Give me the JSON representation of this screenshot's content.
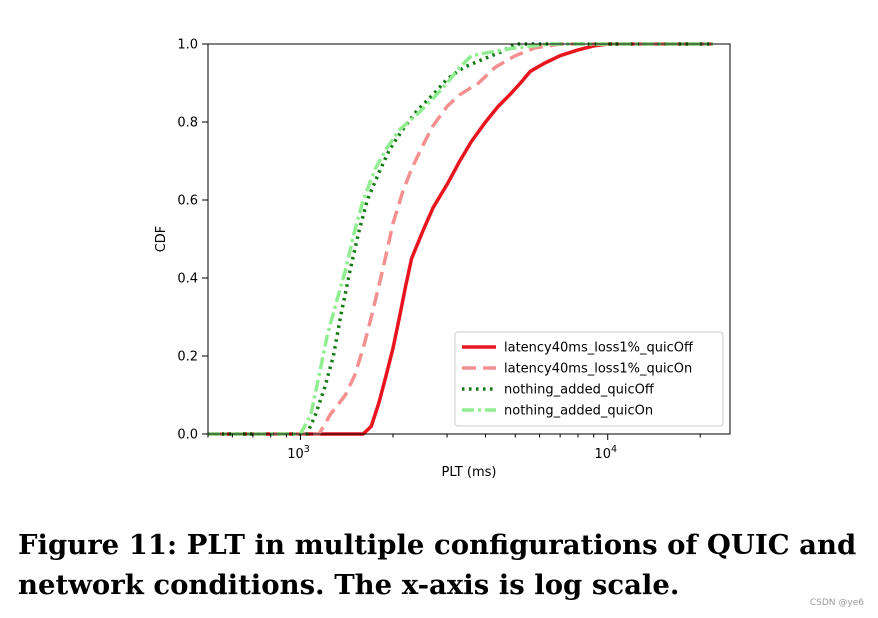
{
  "figure": {
    "caption": "Figure 11: PLT in multiple configurations of QUIC and network conditions. The x-axis is log scale.",
    "watermark": "CSDN @ye6"
  },
  "chart_data": {
    "type": "line",
    "xlabel": "PLT (ms)",
    "ylabel": "CDF",
    "xscale": "log",
    "xlim": [
      500,
      25000
    ],
    "ylim": [
      0,
      1
    ],
    "x_ticks": [
      {
        "value": 1000,
        "base": "10",
        "exp": "3"
      },
      {
        "value": 10000,
        "base": "10",
        "exp": "4"
      }
    ],
    "y_ticks": [
      "0.0",
      "0.2",
      "0.4",
      "0.6",
      "0.8",
      "1.0"
    ],
    "grid": false,
    "legend_position": "lower-right",
    "series": [
      {
        "name": "latency40ms_loss1%_quicOff",
        "color": "#e8141e",
        "style": "solid",
        "points": [
          [
            500,
            0
          ],
          [
            1600,
            0
          ],
          [
            1700,
            0.02
          ],
          [
            1800,
            0.08
          ],
          [
            1900,
            0.15
          ],
          [
            2000,
            0.22
          ],
          [
            2100,
            0.3
          ],
          [
            2200,
            0.38
          ],
          [
            2300,
            0.45
          ],
          [
            2500,
            0.52
          ],
          [
            2700,
            0.58
          ],
          [
            3000,
            0.64
          ],
          [
            3300,
            0.7
          ],
          [
            3600,
            0.75
          ],
          [
            4000,
            0.8
          ],
          [
            4400,
            0.84
          ],
          [
            4800,
            0.87
          ],
          [
            5200,
            0.9
          ],
          [
            5600,
            0.93
          ],
          [
            6200,
            0.95
          ],
          [
            7000,
            0.97
          ],
          [
            8000,
            0.985
          ],
          [
            9000,
            0.995
          ],
          [
            10000,
            1.0
          ],
          [
            22000,
            1.0
          ]
        ]
      },
      {
        "name": "latency40ms_loss1%_quicOn",
        "color": "#f4908f",
        "style": "dash",
        "points": [
          [
            500,
            0
          ],
          [
            1150,
            0
          ],
          [
            1250,
            0.05
          ],
          [
            1400,
            0.1
          ],
          [
            1500,
            0.15
          ],
          [
            1600,
            0.22
          ],
          [
            1700,
            0.3
          ],
          [
            1800,
            0.38
          ],
          [
            1900,
            0.46
          ],
          [
            2000,
            0.54
          ],
          [
            2150,
            0.62
          ],
          [
            2300,
            0.68
          ],
          [
            2500,
            0.74
          ],
          [
            2700,
            0.79
          ],
          [
            3000,
            0.84
          ],
          [
            3300,
            0.87
          ],
          [
            3800,
            0.9
          ],
          [
            4300,
            0.94
          ],
          [
            5000,
            0.97
          ],
          [
            5800,
            0.99
          ],
          [
            7000,
            1.0
          ],
          [
            22000,
            1.0
          ]
        ]
      },
      {
        "name": "nothing_added_quicOff",
        "color": "#127a12",
        "style": "dot",
        "points": [
          [
            500,
            0
          ],
          [
            1050,
            0
          ],
          [
            1120,
            0.05
          ],
          [
            1200,
            0.12
          ],
          [
            1280,
            0.2
          ],
          [
            1350,
            0.3
          ],
          [
            1450,
            0.42
          ],
          [
            1550,
            0.52
          ],
          [
            1650,
            0.6
          ],
          [
            1800,
            0.67
          ],
          [
            1950,
            0.73
          ],
          [
            2150,
            0.78
          ],
          [
            2400,
            0.83
          ],
          [
            2700,
            0.87
          ],
          [
            3000,
            0.91
          ],
          [
            3400,
            0.94
          ],
          [
            3900,
            0.96
          ],
          [
            4500,
            0.98
          ],
          [
            5000,
            1.0
          ],
          [
            22000,
            1.0
          ]
        ]
      },
      {
        "name": "nothing_added_quicOn",
        "color": "#90ee90",
        "style": "dashdot",
        "points": [
          [
            500,
            0
          ],
          [
            1000,
            0
          ],
          [
            1080,
            0.05
          ],
          [
            1150,
            0.15
          ],
          [
            1220,
            0.25
          ],
          [
            1300,
            0.33
          ],
          [
            1400,
            0.42
          ],
          [
            1500,
            0.52
          ],
          [
            1600,
            0.6
          ],
          [
            1750,
            0.68
          ],
          [
            1900,
            0.73
          ],
          [
            2100,
            0.78
          ],
          [
            2400,
            0.82
          ],
          [
            2700,
            0.86
          ],
          [
            3000,
            0.9
          ],
          [
            3300,
            0.94
          ],
          [
            3600,
            0.97
          ],
          [
            4200,
            0.98
          ],
          [
            5000,
            0.99
          ],
          [
            6500,
            1.0
          ],
          [
            22000,
            1.0
          ]
        ]
      }
    ]
  }
}
